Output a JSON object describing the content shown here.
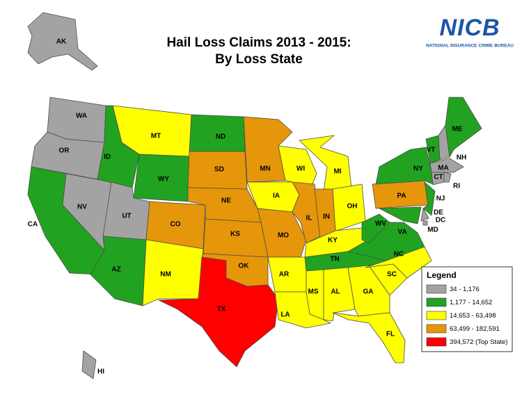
{
  "header": {
    "title": "Hail Loss Claims 2013 - 2015:",
    "subtitle": "By Loss State"
  },
  "logo": {
    "name": "NICB",
    "tagline": "NATIONAL INSURANCE CRIME BUREAU"
  },
  "legend": {
    "title": "Legend",
    "classes": [
      {
        "label": "34 - 1,176",
        "color": "#a3a3a3"
      },
      {
        "label": "1,177 - 14,652",
        "color": "#21a321"
      },
      {
        "label": "14,653 - 63,498",
        "color": "#ffff00"
      },
      {
        "label": "63,499 - 182,591",
        "color": "#e6960a"
      },
      {
        "label": "394,572 (Top State)",
        "color": "#ff0000"
      }
    ]
  },
  "states": [
    {
      "label": "AK",
      "class": 0
    },
    {
      "label": "HI",
      "class": 0
    },
    {
      "label": "WA",
      "class": 0
    },
    {
      "label": "OR",
      "class": 0
    },
    {
      "label": "CA",
      "class": 1
    },
    {
      "label": "NV",
      "class": 0
    },
    {
      "label": "ID",
      "class": 1
    },
    {
      "label": "MT",
      "class": 2
    },
    {
      "label": "WY",
      "class": 1
    },
    {
      "label": "UT",
      "class": 0
    },
    {
      "label": "AZ",
      "class": 1
    },
    {
      "label": "CO",
      "class": 3
    },
    {
      "label": "NM",
      "class": 2
    },
    {
      "label": "ND",
      "class": 1
    },
    {
      "label": "SD",
      "class": 3
    },
    {
      "label": "NE",
      "class": 3
    },
    {
      "label": "KS",
      "class": 3
    },
    {
      "label": "OK",
      "class": 3
    },
    {
      "label": "TX",
      "class": 4
    },
    {
      "label": "MN",
      "class": 3
    },
    {
      "label": "IA",
      "class": 2
    },
    {
      "label": "MO",
      "class": 3
    },
    {
      "label": "AR",
      "class": 2
    },
    {
      "label": "LA",
      "class": 2
    },
    {
      "label": "WI",
      "class": 2
    },
    {
      "label": "MI",
      "class": 2
    },
    {
      "label": "IL",
      "class": 3
    },
    {
      "label": "IN",
      "class": 3
    },
    {
      "label": "OH",
      "class": 2
    },
    {
      "label": "KY",
      "class": 2
    },
    {
      "label": "TN",
      "class": 1
    },
    {
      "label": "MS",
      "class": 2
    },
    {
      "label": "AL",
      "class": 2
    },
    {
      "label": "GA",
      "class": 2
    },
    {
      "label": "FL",
      "class": 2
    },
    {
      "label": "SC",
      "class": 2
    },
    {
      "label": "NC",
      "class": 2
    },
    {
      "label": "VA",
      "class": 1
    },
    {
      "label": "WV",
      "class": 1
    },
    {
      "label": "PA",
      "class": 3
    },
    {
      "label": "NY",
      "class": 1
    },
    {
      "label": "NJ",
      "class": 1
    },
    {
      "label": "MD",
      "class": 1
    },
    {
      "label": "DE",
      "class": 0
    },
    {
      "label": "DC",
      "class": 0
    },
    {
      "label": "VT",
      "class": 1
    },
    {
      "label": "NH",
      "class": 0
    },
    {
      "label": "ME",
      "class": 1
    },
    {
      "label": "MA",
      "class": 0
    },
    {
      "label": "CT",
      "class": 0
    },
    {
      "label": "RI",
      "class": 0
    }
  ]
}
